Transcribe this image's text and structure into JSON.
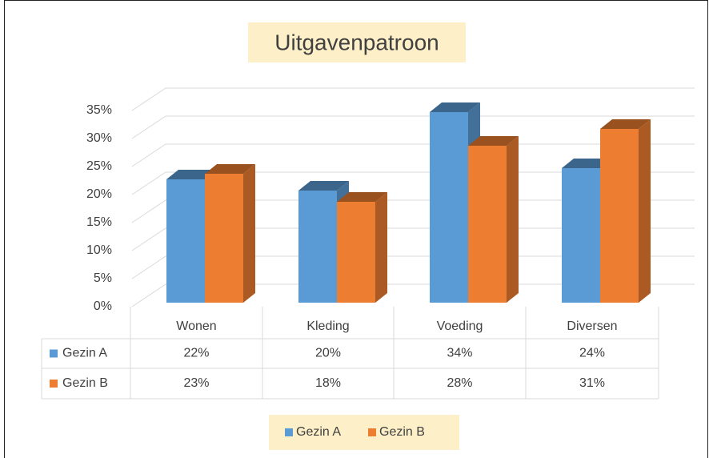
{
  "chart_data": {
    "type": "bar3d",
    "title": "Uitgavenpatroon",
    "categories": [
      "Wonen",
      "Kleding",
      "Voeding",
      "Diversen"
    ],
    "series": [
      {
        "name": "Gezin A",
        "color": "#5b9bd5",
        "values": [
          22,
          20,
          34,
          24
        ],
        "value_labels": [
          "22%",
          "20%",
          "34%",
          "24%"
        ]
      },
      {
        "name": "Gezin B",
        "color": "#ed7d31",
        "values": [
          23,
          18,
          28,
          31
        ],
        "value_labels": [
          "23%",
          "18%",
          "28%",
          "31%"
        ]
      }
    ],
    "ylim": [
      0,
      35
    ],
    "yticks": [
      {
        "value": 0,
        "label": "0%"
      },
      {
        "value": 5,
        "label": "5%"
      },
      {
        "value": 10,
        "label": "10%"
      },
      {
        "value": 15,
        "label": "15%"
      },
      {
        "value": 20,
        "label": "20%"
      },
      {
        "value": 25,
        "label": "25%"
      },
      {
        "value": 30,
        "label": "30%"
      },
      {
        "value": 35,
        "label": "35%"
      }
    ],
    "grid": true,
    "legend": "bottom",
    "data_table": true
  }
}
